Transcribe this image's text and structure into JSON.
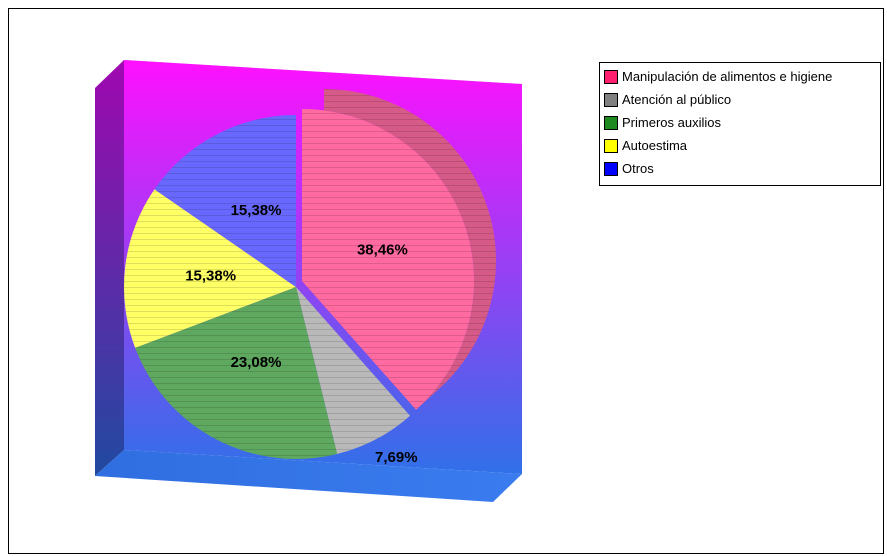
{
  "chart_data": {
    "type": "pie",
    "title": "",
    "categories": [
      "Manipulación de alimentos e higiene",
      "Atención al público",
      "Primeros auxilios",
      "Autoestima",
      "Otros"
    ],
    "values": [
      38.46,
      7.69,
      23.08,
      15.38,
      15.38
    ],
    "data_labels": [
      "38,46%",
      "7,69%",
      "23,08%",
      "15,38%",
      "15,38%"
    ],
    "colors": [
      "#ff6aa0",
      "#b9b9b9",
      "#5fa85f",
      "#ffff66",
      "#6868ff"
    ],
    "legend_colors": [
      "#ff1f6f",
      "#808080",
      "#1f8a1f",
      "#ffff00",
      "#0000ff"
    ],
    "legend_position": "top-right",
    "three_d": true,
    "background_gradient": [
      "#ff10ff",
      "#3070e8"
    ],
    "exploded_slice": "Manipulación de alimentos e higiene"
  }
}
